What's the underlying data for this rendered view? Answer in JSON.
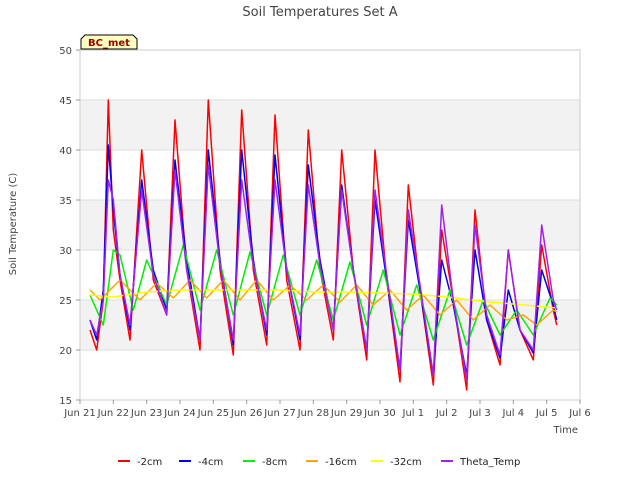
{
  "chart_data": {
    "type": "line",
    "title": "Soil Temperatures Set A",
    "xlabel": "Time",
    "ylabel": "Soil Temperature (C)",
    "badge": "BC_met",
    "x_start": "Jun 21",
    "x_end": "Jul 6",
    "ylim": [
      15,
      50
    ],
    "yticks": [
      15,
      20,
      25,
      30,
      35,
      40,
      45,
      50
    ],
    "xticks": [
      {
        "day": 0,
        "label": "Jun 21"
      },
      {
        "day": 1,
        "label": "Jun 22"
      },
      {
        "day": 2,
        "label": "Jun 23"
      },
      {
        "day": 3,
        "label": "Jun 24"
      },
      {
        "day": 4,
        "label": "Jun 25"
      },
      {
        "day": 5,
        "label": "Jun 26"
      },
      {
        "day": 6,
        "label": "Jun 27"
      },
      {
        "day": 7,
        "label": "Jun 28"
      },
      {
        "day": 8,
        "label": "Jun 29"
      },
      {
        "day": 9,
        "label": "Jun 30"
      },
      {
        "day": 10,
        "label": "Jul 1"
      },
      {
        "day": 11,
        "label": "Jul 2"
      },
      {
        "day": 12,
        "label": "Jul 3"
      },
      {
        "day": 13,
        "label": "Jul 4"
      },
      {
        "day": 14,
        "label": "Jul 5"
      },
      {
        "day": 15,
        "label": "Jul 6"
      }
    ],
    "grid": true,
    "legend_position": "bottom",
    "series": [
      {
        "name": "-2cm",
        "color": "#ff0000",
        "points": [
          [
            0.3,
            22
          ],
          [
            0.5,
            20
          ],
          [
            0.7,
            25
          ],
          [
            0.85,
            45
          ],
          [
            1.0,
            32
          ],
          [
            1.2,
            27
          ],
          [
            1.5,
            21
          ],
          [
            1.85,
            40
          ],
          [
            2.2,
            27
          ],
          [
            2.6,
            23.5
          ],
          [
            2.85,
            43
          ],
          [
            3.2,
            28
          ],
          [
            3.6,
            20
          ],
          [
            3.85,
            45
          ],
          [
            4.2,
            28
          ],
          [
            4.6,
            19.5
          ],
          [
            4.85,
            44
          ],
          [
            5.2,
            28
          ],
          [
            5.6,
            20.5
          ],
          [
            5.85,
            43.5
          ],
          [
            6.2,
            27
          ],
          [
            6.6,
            20
          ],
          [
            6.85,
            42
          ],
          [
            7.2,
            28
          ],
          [
            7.6,
            21
          ],
          [
            7.85,
            40
          ],
          [
            8.2,
            28
          ],
          [
            8.6,
            19
          ],
          [
            8.85,
            40
          ],
          [
            9.2,
            27
          ],
          [
            9.6,
            16.8
          ],
          [
            9.85,
            36.5
          ],
          [
            10.2,
            26
          ],
          [
            10.6,
            16.5
          ],
          [
            10.85,
            32
          ],
          [
            11.2,
            25
          ],
          [
            11.6,
            16
          ],
          [
            11.85,
            34
          ],
          [
            12.2,
            23
          ],
          [
            12.6,
            18.5
          ],
          [
            12.85,
            30
          ],
          [
            13.2,
            22
          ],
          [
            13.6,
            19
          ],
          [
            13.85,
            30.5
          ],
          [
            14.2,
            24
          ],
          [
            14.3,
            22.5
          ]
        ]
      },
      {
        "name": "-4cm",
        "color": "#0000ee",
        "points": [
          [
            0.3,
            23
          ],
          [
            0.5,
            21
          ],
          [
            0.7,
            26
          ],
          [
            0.85,
            40.5
          ],
          [
            1.0,
            34
          ],
          [
            1.2,
            27.5
          ],
          [
            1.5,
            22
          ],
          [
            1.85,
            37
          ],
          [
            2.2,
            28
          ],
          [
            2.6,
            24
          ],
          [
            2.85,
            39
          ],
          [
            3.2,
            29
          ],
          [
            3.6,
            21
          ],
          [
            3.85,
            40
          ],
          [
            4.2,
            29
          ],
          [
            4.6,
            20.5
          ],
          [
            4.85,
            40
          ],
          [
            5.2,
            29
          ],
          [
            5.6,
            21.5
          ],
          [
            5.85,
            39.5
          ],
          [
            6.2,
            28
          ],
          [
            6.6,
            21
          ],
          [
            6.85,
            38.5
          ],
          [
            7.2,
            29
          ],
          [
            7.6,
            22
          ],
          [
            7.85,
            36.5
          ],
          [
            8.2,
            28
          ],
          [
            8.6,
            20
          ],
          [
            8.85,
            35
          ],
          [
            9.2,
            27
          ],
          [
            9.6,
            18
          ],
          [
            9.85,
            33
          ],
          [
            10.2,
            26
          ],
          [
            10.6,
            17.5
          ],
          [
            10.85,
            29
          ],
          [
            11.2,
            24.5
          ],
          [
            11.6,
            17.5
          ],
          [
            11.85,
            30
          ],
          [
            12.2,
            23
          ],
          [
            12.6,
            19.2
          ],
          [
            12.85,
            26
          ],
          [
            13.2,
            22
          ],
          [
            13.6,
            19.7
          ],
          [
            13.85,
            28
          ],
          [
            14.2,
            24.5
          ],
          [
            14.3,
            23
          ]
        ]
      },
      {
        "name": "-8cm",
        "color": "#00ee00",
        "points": [
          [
            0.3,
            25.5
          ],
          [
            0.7,
            22.5
          ],
          [
            1.0,
            30
          ],
          [
            1.2,
            29.5
          ],
          [
            1.6,
            24
          ],
          [
            2.0,
            29
          ],
          [
            2.6,
            24.5
          ],
          [
            3.1,
            30.5
          ],
          [
            3.6,
            24
          ],
          [
            4.1,
            30
          ],
          [
            4.6,
            23.5
          ],
          [
            5.1,
            29.8
          ],
          [
            5.6,
            23.5
          ],
          [
            6.1,
            29.5
          ],
          [
            6.6,
            23.5
          ],
          [
            7.1,
            29
          ],
          [
            7.6,
            23
          ],
          [
            8.1,
            28.8
          ],
          [
            8.6,
            22.5
          ],
          [
            9.1,
            28
          ],
          [
            9.6,
            21.5
          ],
          [
            10.1,
            26.5
          ],
          [
            10.6,
            21
          ],
          [
            11.1,
            26
          ],
          [
            11.6,
            20.5
          ],
          [
            12.1,
            25
          ],
          [
            12.6,
            21.5
          ],
          [
            13.1,
            24
          ],
          [
            13.6,
            21.5
          ],
          [
            14.1,
            25.2
          ],
          [
            14.3,
            24.5
          ]
        ]
      },
      {
        "name": "-16cm",
        "color": "#ffa500",
        "points": [
          [
            0.3,
            26
          ],
          [
            0.6,
            25
          ],
          [
            1.2,
            27
          ],
          [
            1.8,
            25
          ],
          [
            2.3,
            26.7
          ],
          [
            2.8,
            25.2
          ],
          [
            3.3,
            27
          ],
          [
            3.8,
            25.2
          ],
          [
            4.3,
            27
          ],
          [
            4.8,
            25
          ],
          [
            5.3,
            27
          ],
          [
            5.8,
            25
          ],
          [
            6.3,
            26.5
          ],
          [
            6.8,
            25
          ],
          [
            7.3,
            26.5
          ],
          [
            7.8,
            24.8
          ],
          [
            8.3,
            26.5
          ],
          [
            8.8,
            24.5
          ],
          [
            9.3,
            26
          ],
          [
            9.8,
            24
          ],
          [
            10.3,
            25.5
          ],
          [
            10.8,
            23.5
          ],
          [
            11.3,
            25
          ],
          [
            11.8,
            23
          ],
          [
            12.3,
            24.5
          ],
          [
            12.8,
            23
          ],
          [
            13.3,
            23.5
          ],
          [
            13.7,
            22.5
          ],
          [
            14.2,
            24
          ],
          [
            14.3,
            23.8
          ]
        ]
      },
      {
        "name": "-32cm",
        "color": "#ffff00",
        "points": [
          [
            0.3,
            25.5
          ],
          [
            1.0,
            25.3
          ],
          [
            2.0,
            25.8
          ],
          [
            3.0,
            26
          ],
          [
            4.0,
            26
          ],
          [
            5.0,
            26
          ],
          [
            6.0,
            26
          ],
          [
            7.0,
            25.8
          ],
          [
            8.0,
            25.8
          ],
          [
            9.0,
            25.7
          ],
          [
            10.0,
            25.6
          ],
          [
            11.0,
            25.3
          ],
          [
            12.0,
            24.9
          ],
          [
            13.0,
            24.6
          ],
          [
            14.0,
            24.3
          ],
          [
            14.3,
            24.2
          ]
        ]
      },
      {
        "name": "Theta_Temp",
        "color": "#a020f0",
        "points": [
          [
            0.3,
            23
          ],
          [
            0.5,
            21.5
          ],
          [
            0.7,
            25
          ],
          [
            0.85,
            37
          ],
          [
            1.0,
            35
          ],
          [
            1.2,
            27.5
          ],
          [
            1.5,
            22.5
          ],
          [
            1.85,
            36
          ],
          [
            2.2,
            27.5
          ],
          [
            2.6,
            23.5
          ],
          [
            2.85,
            38
          ],
          [
            3.2,
            28
          ],
          [
            3.6,
            21
          ],
          [
            3.85,
            38.5
          ],
          [
            4.2,
            28.5
          ],
          [
            4.6,
            21
          ],
          [
            4.85,
            37
          ],
          [
            5.2,
            28.5
          ],
          [
            5.6,
            22
          ],
          [
            5.85,
            37
          ],
          [
            6.2,
            28
          ],
          [
            6.6,
            21.5
          ],
          [
            6.85,
            36.5
          ],
          [
            7.2,
            28.5
          ],
          [
            7.6,
            22
          ],
          [
            7.85,
            36
          ],
          [
            8.2,
            28
          ],
          [
            8.6,
            20
          ],
          [
            8.85,
            36
          ],
          [
            9.2,
            27.5
          ],
          [
            9.6,
            18
          ],
          [
            9.85,
            34
          ],
          [
            10.2,
            26.5
          ],
          [
            10.6,
            17.5
          ],
          [
            10.85,
            34.5
          ],
          [
            11.2,
            25
          ],
          [
            11.6,
            17
          ],
          [
            11.85,
            32.5
          ],
          [
            12.2,
            23.5
          ],
          [
            12.6,
            19.5
          ],
          [
            12.85,
            30
          ],
          [
            13.2,
            22
          ],
          [
            13.6,
            20
          ],
          [
            13.85,
            32.5
          ],
          [
            14.2,
            25
          ],
          [
            14.3,
            24
          ]
        ]
      }
    ]
  }
}
